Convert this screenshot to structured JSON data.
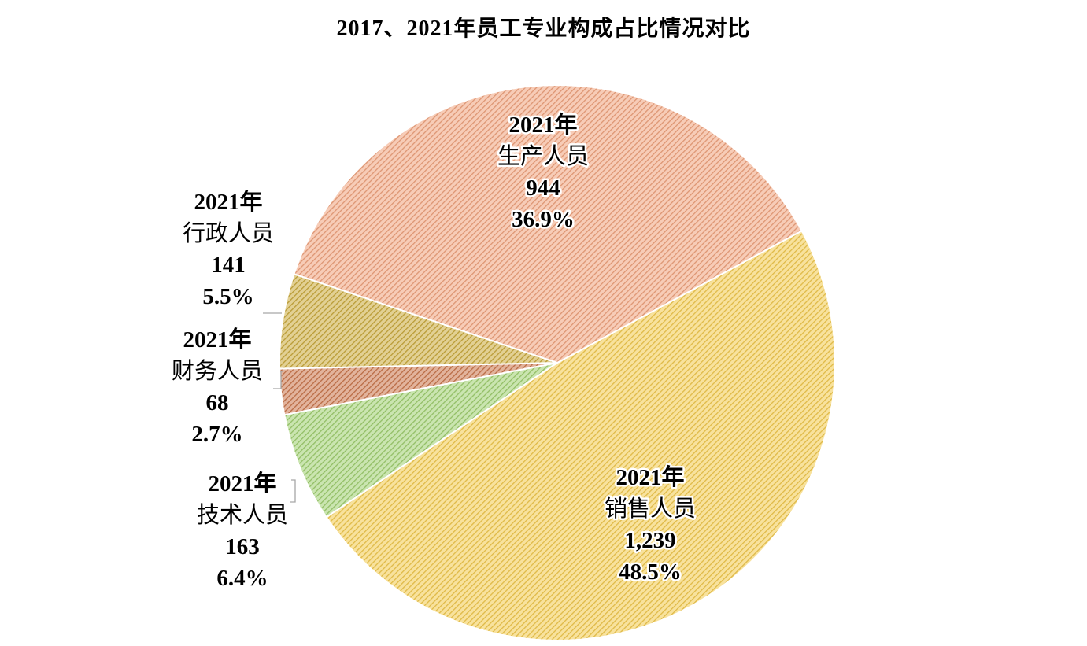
{
  "chart_data": {
    "type": "pie",
    "title": "2017、2021年员工专业构成占比情况对比",
    "slices": [
      {
        "year_label": "2021年",
        "name": "销售人员",
        "value": 1239,
        "value_label": "1,239",
        "percent": 48.5,
        "percent_label": "48.5%",
        "color": "#f2c94c"
      },
      {
        "year_label": "2021年",
        "name": "技术人员",
        "value": 163,
        "value_label": "163",
        "percent": 6.4,
        "percent_label": "6.4%",
        "color": "#9fcf6e"
      },
      {
        "year_label": "2021年",
        "name": "财务人员",
        "value": 68,
        "value_label": "68",
        "percent": 2.7,
        "percent_label": "2.7%",
        "color": "#c9744a"
      },
      {
        "year_label": "2021年",
        "name": "行政人员",
        "value": 141,
        "value_label": "141",
        "percent": 5.5,
        "percent_label": "5.5%",
        "color": "#c9a93a"
      },
      {
        "year_label": "2021年",
        "name": "生产人员",
        "value": 944,
        "value_label": "944",
        "percent": 36.9,
        "percent_label": "36.9%",
        "color": "#f0a27c"
      }
    ]
  }
}
